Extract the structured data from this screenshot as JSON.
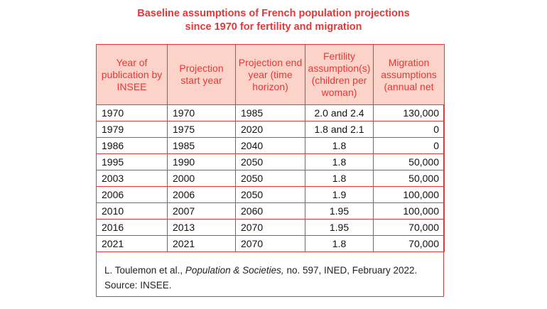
{
  "title": {
    "line1": "Baseline assumptions of French population projections",
    "line2": "since 1970 for fertility and migration"
  },
  "table": {
    "headers": [
      "Year of publication by INSEE",
      "Projection start year",
      "Projection end year (time horizon)",
      "Fertility assumption(s) (children per woman)",
      "Migration assumptions (annual net"
    ],
    "rows": [
      [
        "1970",
        "1970",
        "1985",
        "2.0 and 2.4",
        "130,000"
      ],
      [
        "1979",
        "1975",
        "2020",
        "1.8 and 2.1",
        "0"
      ],
      [
        "1986",
        "1985",
        "2040",
        "1.8",
        "0"
      ],
      [
        "1995",
        "1990",
        "2050",
        "1.8",
        "50,000"
      ],
      [
        "2003",
        "2000",
        "2050",
        "1.8",
        "50,000"
      ],
      [
        "2006",
        "2006",
        "2050",
        "1.9",
        "100,000"
      ],
      [
        "2010",
        "2007",
        "2060",
        "1.95",
        "100,000"
      ],
      [
        "2016",
        "2013",
        "2070",
        "1.95",
        "70,000"
      ],
      [
        "2021",
        "2021",
        "2070",
        "1.8",
        "70,000"
      ]
    ]
  },
  "source": {
    "authors": "L. Toulemon et al.,",
    "journal": "Population & Societies,",
    "details": "no. 597, INED, February 2022.",
    "line2": "Source: INSEE."
  },
  "colors": {
    "accent": "#e53838",
    "header_bg": "#fbd3c8"
  }
}
